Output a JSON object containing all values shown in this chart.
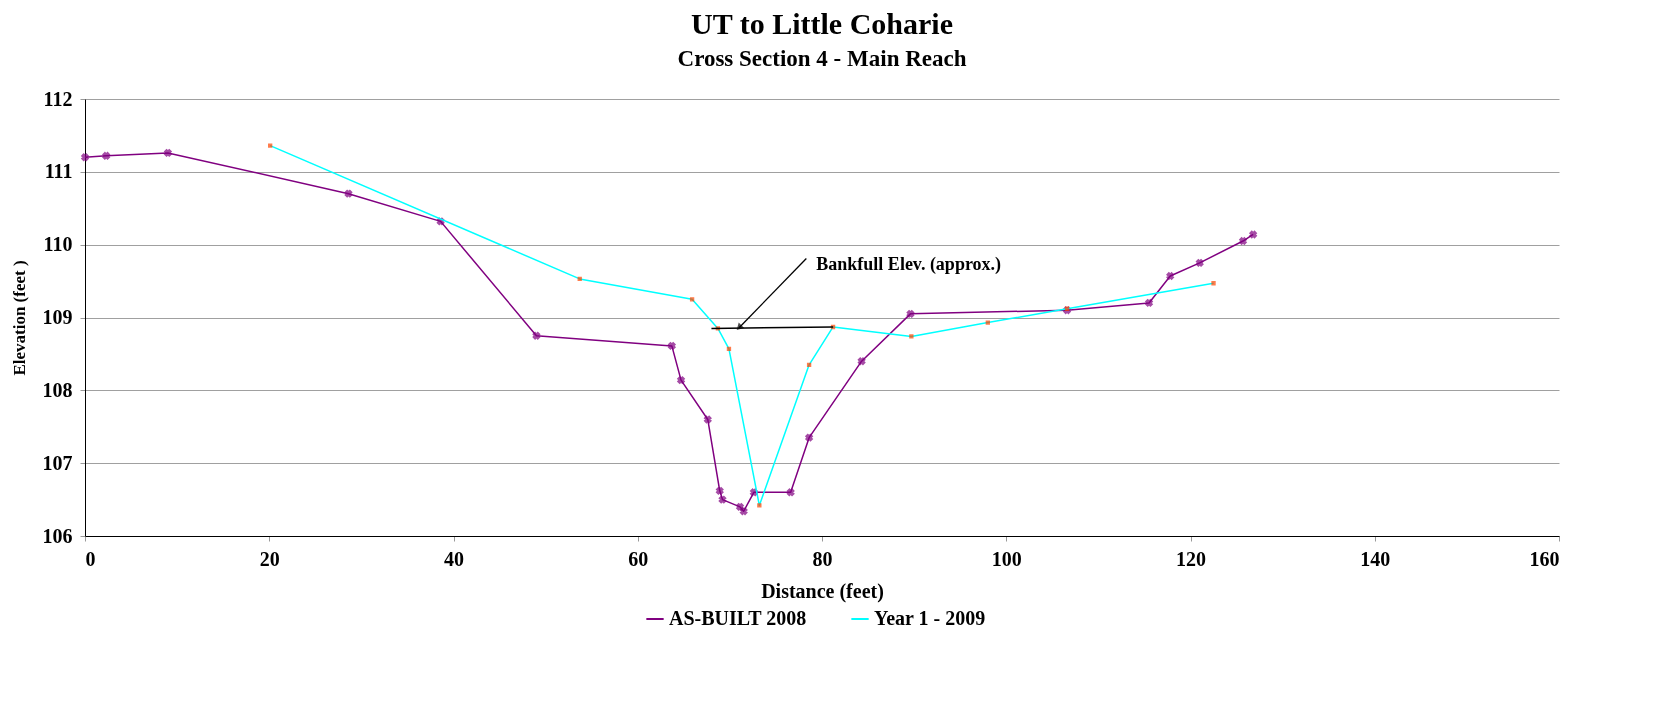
{
  "chart_data": {
    "type": "line",
    "title": "UT to Little Coharie",
    "subtitle": "Cross Section 4 - Main Reach",
    "xlabel": "Distance (feet)",
    "ylabel": "Elevation (feet )",
    "xlim": [
      0,
      160
    ],
    "xticks": [
      0,
      20,
      40,
      60,
      80,
      100,
      120,
      140,
      160
    ],
    "ylim": [
      106,
      112
    ],
    "yticks": [
      106,
      107,
      108,
      109,
      110,
      111,
      112
    ],
    "grid": "y",
    "legend": "bottom",
    "annotations": [
      {
        "text": "Bankfull Elev. (approx.)",
        "x": 71,
        "y": 108.86
      }
    ],
    "series": [
      {
        "name": "AS-BUILT 2008",
        "color": "#800080",
        "marker": "cross",
        "x": [
          0,
          2.3,
          9,
          28.6,
          38.6,
          49,
          63.7,
          64.7,
          67.6,
          68.9,
          69.2,
          71.1,
          71.5,
          72.6,
          76.6,
          78.6,
          84.3,
          89.6,
          106.6,
          115.5,
          117.8,
          121,
          125.7,
          126.8
        ],
        "values": [
          111.2,
          111.22,
          111.26,
          110.7,
          110.32,
          108.75,
          108.61,
          108.14,
          107.6,
          106.62,
          106.5,
          106.4,
          106.34,
          106.6,
          106.6,
          107.35,
          108.4,
          109.05,
          109.1,
          109.2,
          109.57,
          109.75,
          110.05,
          110.14
        ]
      },
      {
        "name": "Year 1  - 2009",
        "color": "#00ffff",
        "marker": "square",
        "x": [
          20.1,
          53.7,
          65.9,
          68.7,
          69.9,
          73.2,
          78.6,
          81.2,
          89.7,
          98,
          106.6,
          122.5
        ],
        "values": [
          111.36,
          109.53,
          109.25,
          108.85,
          108.57,
          106.42,
          108.35,
          108.87,
          108.74,
          108.93,
          109.12,
          109.47
        ]
      },
      {
        "type": "line",
        "color": "#000000",
        "marker": "none",
        "x": [
          68,
          81.2
        ],
        "values": [
          108.85,
          108.87
        ]
      }
    ]
  }
}
